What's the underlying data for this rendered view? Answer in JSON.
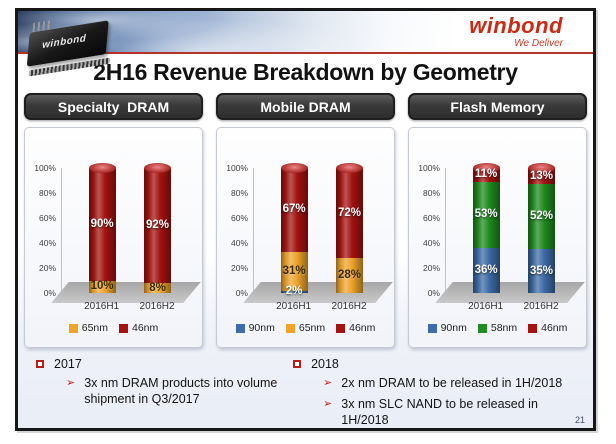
{
  "title": "2H16 Revenue Breakdown by Geometry",
  "page_number": "21",
  "header": {
    "brand": "winbond",
    "tagline": "We Deliver",
    "chip_label": "winbond"
  },
  "colors": {
    "accent_red": "#b5342a",
    "header_pill": "#3a3a3a",
    "floor_gray": "#b5b5b5"
  },
  "icons": {
    "year_bullet": "red-outline-square",
    "item_bullet": "➢"
  },
  "chart_data": [
    {
      "type": "bar",
      "stacked": true,
      "title": "Specialty  DRAM",
      "categories": [
        "2016H1",
        "2016H2"
      ],
      "y_ticks": [
        "100%",
        "80%",
        "60%",
        "40%",
        "20%",
        "0%"
      ],
      "ylim": [
        0,
        100
      ],
      "grid": false,
      "legend_position": "bottom",
      "series": [
        {
          "name": "65nm",
          "color": "#f0a42c",
          "label_color": "#3a2a00",
          "values": [
            10,
            8
          ]
        },
        {
          "name": "46nm",
          "color": "#a51311",
          "label_color": "#ffffff",
          "values": [
            90,
            92
          ]
        }
      ]
    },
    {
      "type": "bar",
      "stacked": true,
      "title": "Mobile DRAM",
      "categories": [
        "2016H1",
        "2016H2"
      ],
      "y_ticks": [
        "100%",
        "80%",
        "60%",
        "40%",
        "20%",
        "0%"
      ],
      "ylim": [
        0,
        100
      ],
      "grid": false,
      "legend_position": "bottom",
      "series": [
        {
          "name": "90nm",
          "color": "#3e6ca8",
          "label_color": "#ffffff",
          "values": [
            2,
            0
          ]
        },
        {
          "name": "65nm",
          "color": "#f0a42c",
          "label_color": "#3a2a00",
          "values": [
            31,
            28
          ]
        },
        {
          "name": "46nm",
          "color": "#a51311",
          "label_color": "#ffffff",
          "values": [
            67,
            72
          ]
        }
      ]
    },
    {
      "type": "bar",
      "stacked": true,
      "title": "Flash Memory",
      "categories": [
        "2016H1",
        "2016H2"
      ],
      "y_ticks": [
        "100%",
        "80%",
        "60%",
        "40%",
        "20%",
        "0%"
      ],
      "ylim": [
        0,
        100
      ],
      "grid": false,
      "legend_position": "bottom",
      "series": [
        {
          "name": "90nm",
          "color": "#3e6ca8",
          "label_color": "#ffffff",
          "values": [
            36,
            35
          ]
        },
        {
          "name": "58nm",
          "color": "#1f8c1f",
          "label_color": "#ffffff",
          "values": [
            53,
            52
          ]
        },
        {
          "name": "46nm",
          "color": "#a51311",
          "label_color": "#ffffff",
          "values": [
            11,
            13
          ]
        }
      ]
    }
  ],
  "notes": [
    {
      "year": "2017",
      "items": [
        "3x nm DRAM products into volume shipment in Q3/2017"
      ]
    },
    {
      "year": "2018",
      "items": [
        "2x nm DRAM to be released in 1H/2018",
        "3x nm SLC NAND to be released in 1H/2018"
      ]
    }
  ]
}
